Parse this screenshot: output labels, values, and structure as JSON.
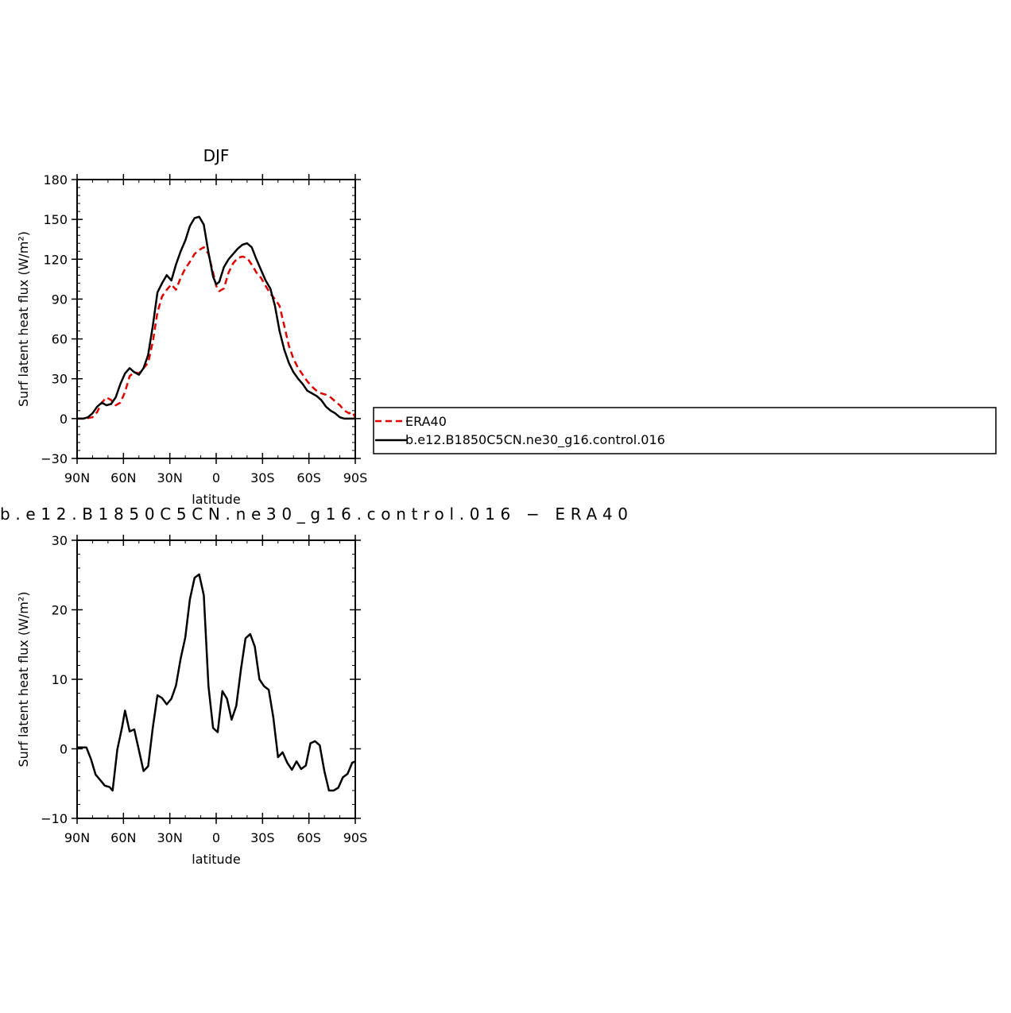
{
  "chart_data": [
    {
      "type": "line",
      "title": "DJF",
      "xlabel": "latitude",
      "ylabel": "Surf latent heat flux (W/m²)",
      "xlim": [
        90,
        -90
      ],
      "ylim": [
        -30,
        180
      ],
      "xtick_values": [
        90,
        60,
        30,
        0,
        -30,
        -60,
        -90
      ],
      "xtick_labels": [
        "90N",
        "60N",
        "30N",
        "0",
        "30S",
        "60S",
        "90S"
      ],
      "ytick_values": [
        -30,
        0,
        30,
        60,
        90,
        120,
        150,
        180
      ],
      "ytick_labels": [
        "−30",
        "0",
        "30",
        "60",
        "90",
        "120",
        "150",
        "180"
      ],
      "grid": false,
      "legend": "right",
      "series": [
        {
          "name": "ERA40",
          "color": "#e00000",
          "dash": "dashed",
          "x": [
            90,
            85,
            80,
            77,
            74,
            71,
            68,
            65,
            62,
            59,
            56,
            53,
            50,
            47,
            44,
            41,
            38,
            35,
            32,
            29,
            26,
            23,
            20,
            17,
            14,
            11,
            8,
            5,
            2,
            0,
            -2,
            -5,
            -8,
            -11,
            -14,
            -17,
            -20,
            -23,
            -26,
            -29,
            -32,
            -35,
            -38,
            -41,
            -44,
            -47,
            -50,
            -53,
            -56,
            -59,
            -62,
            -65,
            -68,
            -71,
            -74,
            -77,
            -80,
            -83,
            -86,
            -88,
            -90
          ],
          "y": [
            0,
            0,
            1,
            5,
            12,
            16,
            14,
            10,
            12,
            20,
            32,
            35,
            34,
            38,
            42,
            58,
            80,
            92,
            97,
            101,
            97,
            106,
            113,
            118,
            124,
            127,
            129,
            124,
            110,
            100,
            96,
            98,
            110,
            117,
            121,
            122,
            121,
            116,
            110,
            106,
            100,
            94,
            90,
            85,
            70,
            55,
            45,
            38,
            33,
            28,
            24,
            21,
            19,
            18,
            16,
            13,
            10,
            6,
            4,
            5,
            1
          ]
        },
        {
          "name": "b.e12.B1850C5CN.ne30_g16.control.016",
          "color": "#000000",
          "dash": "solid",
          "x": [
            90,
            86,
            83,
            80,
            77,
            74,
            71,
            68,
            65,
            62,
            59,
            56,
            53,
            50,
            47,
            44,
            41,
            38,
            35,
            32,
            29,
            26,
            23,
            20,
            17,
            14,
            11,
            8,
            5,
            2,
            0,
            -2,
            -5,
            -8,
            -11,
            -14,
            -17,
            -20,
            -23,
            -26,
            -29,
            -32,
            -35,
            -38,
            -41,
            -44,
            -47,
            -50,
            -53,
            -56,
            -59,
            -62,
            -65,
            -68,
            -71,
            -74,
            -77,
            -80,
            -83,
            -86,
            -88,
            -90
          ],
          "y": [
            0,
            0,
            1,
            4,
            9,
            12,
            10,
            11,
            16,
            26,
            34,
            38,
            35,
            33,
            38,
            48,
            70,
            95,
            102,
            108,
            104,
            116,
            126,
            134,
            145,
            151,
            152,
            146,
            125,
            107,
            101,
            103,
            114,
            120,
            124,
            128,
            131,
            132,
            129,
            120,
            112,
            104,
            98,
            85,
            66,
            52,
            42,
            35,
            30,
            26,
            21,
            19,
            17,
            14,
            9,
            6,
            4,
            1,
            0,
            0,
            0,
            0
          ]
        }
      ]
    },
    {
      "type": "line",
      "title": "b.e12.B1850C5CN.ne30_g16.control.016 − ERA40",
      "xlabel": "latitude",
      "ylabel": "Surf latent heat flux (W/m²)",
      "xlim": [
        90,
        -90
      ],
      "ylim": [
        -10,
        30
      ],
      "xtick_values": [
        90,
        60,
        30,
        0,
        -30,
        -60,
        -90
      ],
      "xtick_labels": [
        "90N",
        "60N",
        "30N",
        "0",
        "30S",
        "60S",
        "90S"
      ],
      "ytick_values": [
        -10,
        0,
        10,
        20,
        30
      ],
      "ytick_labels": [
        "−10",
        "0",
        "10",
        "20",
        "30"
      ],
      "grid": false,
      "series": [
        {
          "color": "#000000",
          "dash": "solid",
          "x": [
            90,
            87,
            84,
            81,
            78,
            75,
            72,
            69,
            67,
            64,
            61,
            59,
            56,
            53,
            50,
            47,
            44,
            41,
            38,
            35,
            32,
            29,
            26,
            23,
            20,
            17,
            14,
            11,
            8,
            5,
            2,
            -1,
            -4,
            -7,
            -10,
            -13,
            -16,
            -19,
            -22,
            -25,
            -28,
            -31,
            -34,
            -37,
            -40,
            -43,
            -46,
            -49,
            -52,
            -55,
            -58,
            -61,
            -64,
            -67,
            -70,
            -73,
            -76,
            -79,
            -82,
            -85,
            -88,
            -90
          ],
          "y": [
            0.2,
            0.2,
            0.2,
            -1.5,
            -3.7,
            -4.5,
            -5.3,
            -5.5,
            -6.0,
            -0.1,
            3.0,
            5.5,
            2.5,
            2.8,
            -0.2,
            -3.2,
            -2.5,
            3.1,
            7.7,
            7.3,
            6.4,
            7.2,
            9.1,
            13.0,
            16.0,
            21.5,
            24.6,
            25.1,
            22.1,
            9.0,
            3.0,
            2.4,
            8.3,
            7.2,
            4.2,
            6.2,
            11.4,
            15.9,
            16.5,
            14.7,
            10.0,
            9.0,
            8.5,
            4.5,
            -1.2,
            -0.5,
            -2.0,
            -3.0,
            -1.8,
            -2.9,
            -2.4,
            0.8,
            1.1,
            0.5,
            -3.2,
            -6.0,
            -6.0,
            -5.6,
            -4.1,
            -3.6,
            -2.0,
            -1.8
          ]
        }
      ]
    }
  ]
}
